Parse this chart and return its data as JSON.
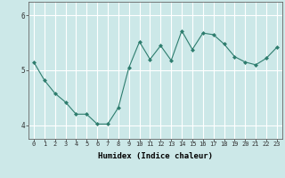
{
  "x": [
    0,
    1,
    2,
    3,
    4,
    5,
    6,
    7,
    8,
    9,
    10,
    11,
    12,
    13,
    14,
    15,
    16,
    17,
    18,
    19,
    20,
    21,
    22,
    23
  ],
  "y": [
    5.15,
    4.82,
    4.58,
    4.42,
    4.2,
    4.2,
    4.02,
    4.02,
    4.32,
    5.05,
    5.52,
    5.2,
    5.45,
    5.18,
    5.72,
    5.38,
    5.68,
    5.65,
    5.48,
    5.25,
    5.15,
    5.1,
    5.22,
    5.42
  ],
  "line_color": "#2e7d6e",
  "marker": "D",
  "markersize": 2.0,
  "linewidth": 0.8,
  "background_color": "#cce8e8",
  "grid_color": "#ffffff",
  "xlabel": "Humidex (Indice chaleur)",
  "ylabel": "",
  "xlim": [
    -0.5,
    23.5
  ],
  "ylim": [
    3.75,
    6.25
  ],
  "yticks": [
    4,
    5,
    6
  ],
  "ytick_labels": [
    "4",
    "5",
    "6"
  ],
  "xticks": [
    0,
    1,
    2,
    3,
    4,
    5,
    6,
    7,
    8,
    9,
    10,
    11,
    12,
    13,
    14,
    15,
    16,
    17,
    18,
    19,
    20,
    21,
    22,
    23
  ],
  "spine_color": "#666666",
  "xlabel_fontsize": 6.5,
  "xtick_fontsize": 5.0,
  "ytick_fontsize": 5.5
}
